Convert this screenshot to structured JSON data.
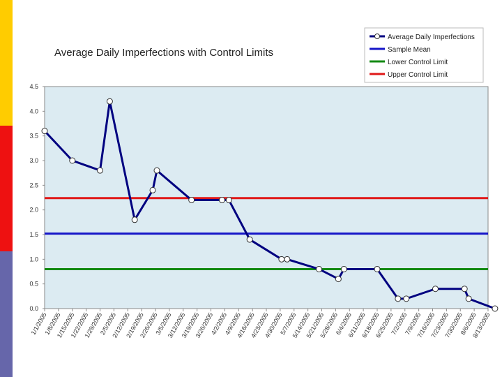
{
  "slide": {
    "stripe_colors": [
      "#FFCC00",
      "#EE1111",
      "#6666AA"
    ]
  },
  "chart_data": {
    "type": "line",
    "title": "Average Daily Imperfections with Control Limits",
    "xlabel": "",
    "ylabel": "",
    "ylim": [
      0,
      4.5
    ],
    "yticks": [
      "0.0",
      "0.5",
      "1.0",
      "1.5",
      "2.0",
      "2.5",
      "3.0",
      "3.5",
      "4.0",
      "4.5"
    ],
    "xtick_labels": [
      "1/1/2005",
      "1/8/2005",
      "1/15/2005",
      "1/22/2005",
      "1/29/2005",
      "2/5/2005",
      "2/12/2005",
      "2/19/2005",
      "2/26/2005",
      "3/5/2005",
      "3/12/2005",
      "3/19/2005",
      "3/26/2005",
      "4/2/2005",
      "4/9/2005",
      "4/16/2005",
      "4/23/2005",
      "4/30/2005",
      "5/7/2005",
      "5/14/2005",
      "5/21/2005",
      "5/28/2005",
      "6/4/2005",
      "6/11/2005",
      "6/18/2005",
      "6/25/2005",
      "7/2/2005",
      "7/9/2005",
      "7/16/2005",
      "7/23/2005",
      "7/30/2005",
      "8/6/2005",
      "8/13/2005"
    ],
    "grid": false,
    "legend_position": "top-right",
    "series": [
      {
        "name": "Average Daily Imperfections",
        "color": "#000080",
        "marker": "circle",
        "x": [
          0,
          2,
          4,
          4.7,
          6.5,
          7.8,
          8.1,
          10.6,
          12.8,
          13.3,
          14.8,
          17.1,
          17.5,
          19.8,
          21.2,
          21.6,
          24,
          25.5,
          26.1,
          28.2,
          30.3,
          30.6,
          32.5
        ],
        "values": [
          3.6,
          3.0,
          2.8,
          4.2,
          1.8,
          2.4,
          2.8,
          2.2,
          2.2,
          2.2,
          1.4,
          1.0,
          1.0,
          0.8,
          0.6,
          0.8,
          0.8,
          0.2,
          0.2,
          0.4,
          0.4,
          0.2,
          0.0
        ]
      },
      {
        "name": "Sample Mean",
        "color": "#1515C8",
        "value": 1.52
      },
      {
        "name": "Lower Control Limit",
        "color": "#138A13",
        "value": 0.8
      },
      {
        "name": "Upper Control Limit",
        "color": "#E01818",
        "value": 2.24
      }
    ]
  }
}
